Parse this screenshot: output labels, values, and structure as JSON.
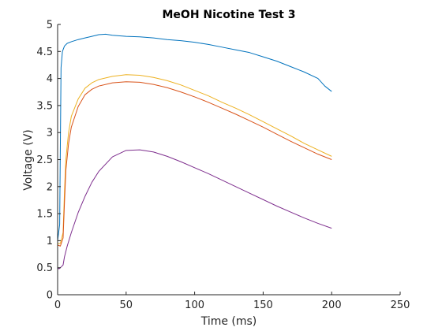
{
  "chart_data": {
    "type": "line",
    "title": "MeOH Nicotine Test 3",
    "xlabel": "Time (ms)",
    "ylabel": "Voltage (V)",
    "xlim": [
      0,
      250
    ],
    "ylim": [
      0,
      5
    ],
    "xticks": [
      0,
      50,
      100,
      150,
      200,
      250
    ],
    "yticks": [
      0,
      0.5,
      1,
      1.5,
      2,
      2.5,
      3,
      3.5,
      4,
      4.5,
      5
    ],
    "xtick_labels": [
      "0",
      "50",
      "100",
      "150",
      "200",
      "250"
    ],
    "ytick_labels": [
      "0",
      "0.5",
      "1",
      "1.5",
      "2",
      "2.5",
      "3",
      "3.5",
      "4",
      "4.5",
      "5"
    ],
    "grid": false,
    "legend": "none",
    "series": [
      {
        "color": "#0072BD",
        "x": [
          0,
          1.5,
          2.5,
          3.5,
          5,
          7,
          10,
          15,
          20,
          25,
          30,
          35,
          40,
          50,
          60,
          70,
          80,
          90,
          100,
          110,
          120,
          130,
          140,
          150,
          160,
          170,
          180,
          190,
          195,
          200
        ],
        "y": [
          1.0,
          1.3,
          4.2,
          4.5,
          4.6,
          4.65,
          4.68,
          4.72,
          4.75,
          4.78,
          4.81,
          4.82,
          4.8,
          4.78,
          4.77,
          4.75,
          4.72,
          4.7,
          4.67,
          4.63,
          4.58,
          4.53,
          4.48,
          4.4,
          4.32,
          4.22,
          4.12,
          4.0,
          3.86,
          3.76
        ]
      },
      {
        "color": "#EDB120",
        "x": [
          0,
          2,
          4,
          5,
          6,
          8,
          10,
          15,
          20,
          25,
          30,
          40,
          50,
          60,
          70,
          80,
          90,
          100,
          110,
          120,
          130,
          140,
          150,
          160,
          170,
          180,
          190,
          200
        ],
        "y": [
          0.95,
          0.95,
          1.15,
          1.9,
          2.5,
          3.0,
          3.3,
          3.62,
          3.82,
          3.92,
          3.98,
          4.04,
          4.07,
          4.06,
          4.02,
          3.96,
          3.88,
          3.78,
          3.68,
          3.56,
          3.45,
          3.33,
          3.2,
          3.07,
          2.94,
          2.8,
          2.68,
          2.56
        ]
      },
      {
        "color": "#D95319",
        "x": [
          0,
          2,
          4,
          5,
          6,
          8,
          10,
          15,
          20,
          25,
          30,
          40,
          50,
          60,
          70,
          80,
          90,
          100,
          110,
          120,
          130,
          140,
          150,
          160,
          170,
          180,
          190,
          200
        ],
        "y": [
          0.92,
          0.9,
          1.05,
          1.7,
          2.3,
          2.8,
          3.1,
          3.48,
          3.7,
          3.8,
          3.86,
          3.92,
          3.94,
          3.93,
          3.89,
          3.83,
          3.75,
          3.66,
          3.56,
          3.45,
          3.34,
          3.22,
          3.1,
          2.97,
          2.84,
          2.72,
          2.6,
          2.5
        ]
      },
      {
        "color": "#7E2F8E",
        "x": [
          0,
          1,
          2,
          4,
          5,
          7,
          10,
          15,
          20,
          25,
          30,
          40,
          50,
          60,
          70,
          80,
          90,
          100,
          110,
          120,
          130,
          140,
          150,
          160,
          170,
          180,
          190,
          200
        ],
        "y": [
          0.5,
          0.48,
          0.5,
          0.55,
          0.7,
          0.9,
          1.15,
          1.52,
          1.82,
          2.08,
          2.28,
          2.55,
          2.67,
          2.68,
          2.64,
          2.56,
          2.46,
          2.35,
          2.24,
          2.12,
          2.0,
          1.88,
          1.76,
          1.64,
          1.53,
          1.42,
          1.32,
          1.23
        ]
      }
    ]
  }
}
